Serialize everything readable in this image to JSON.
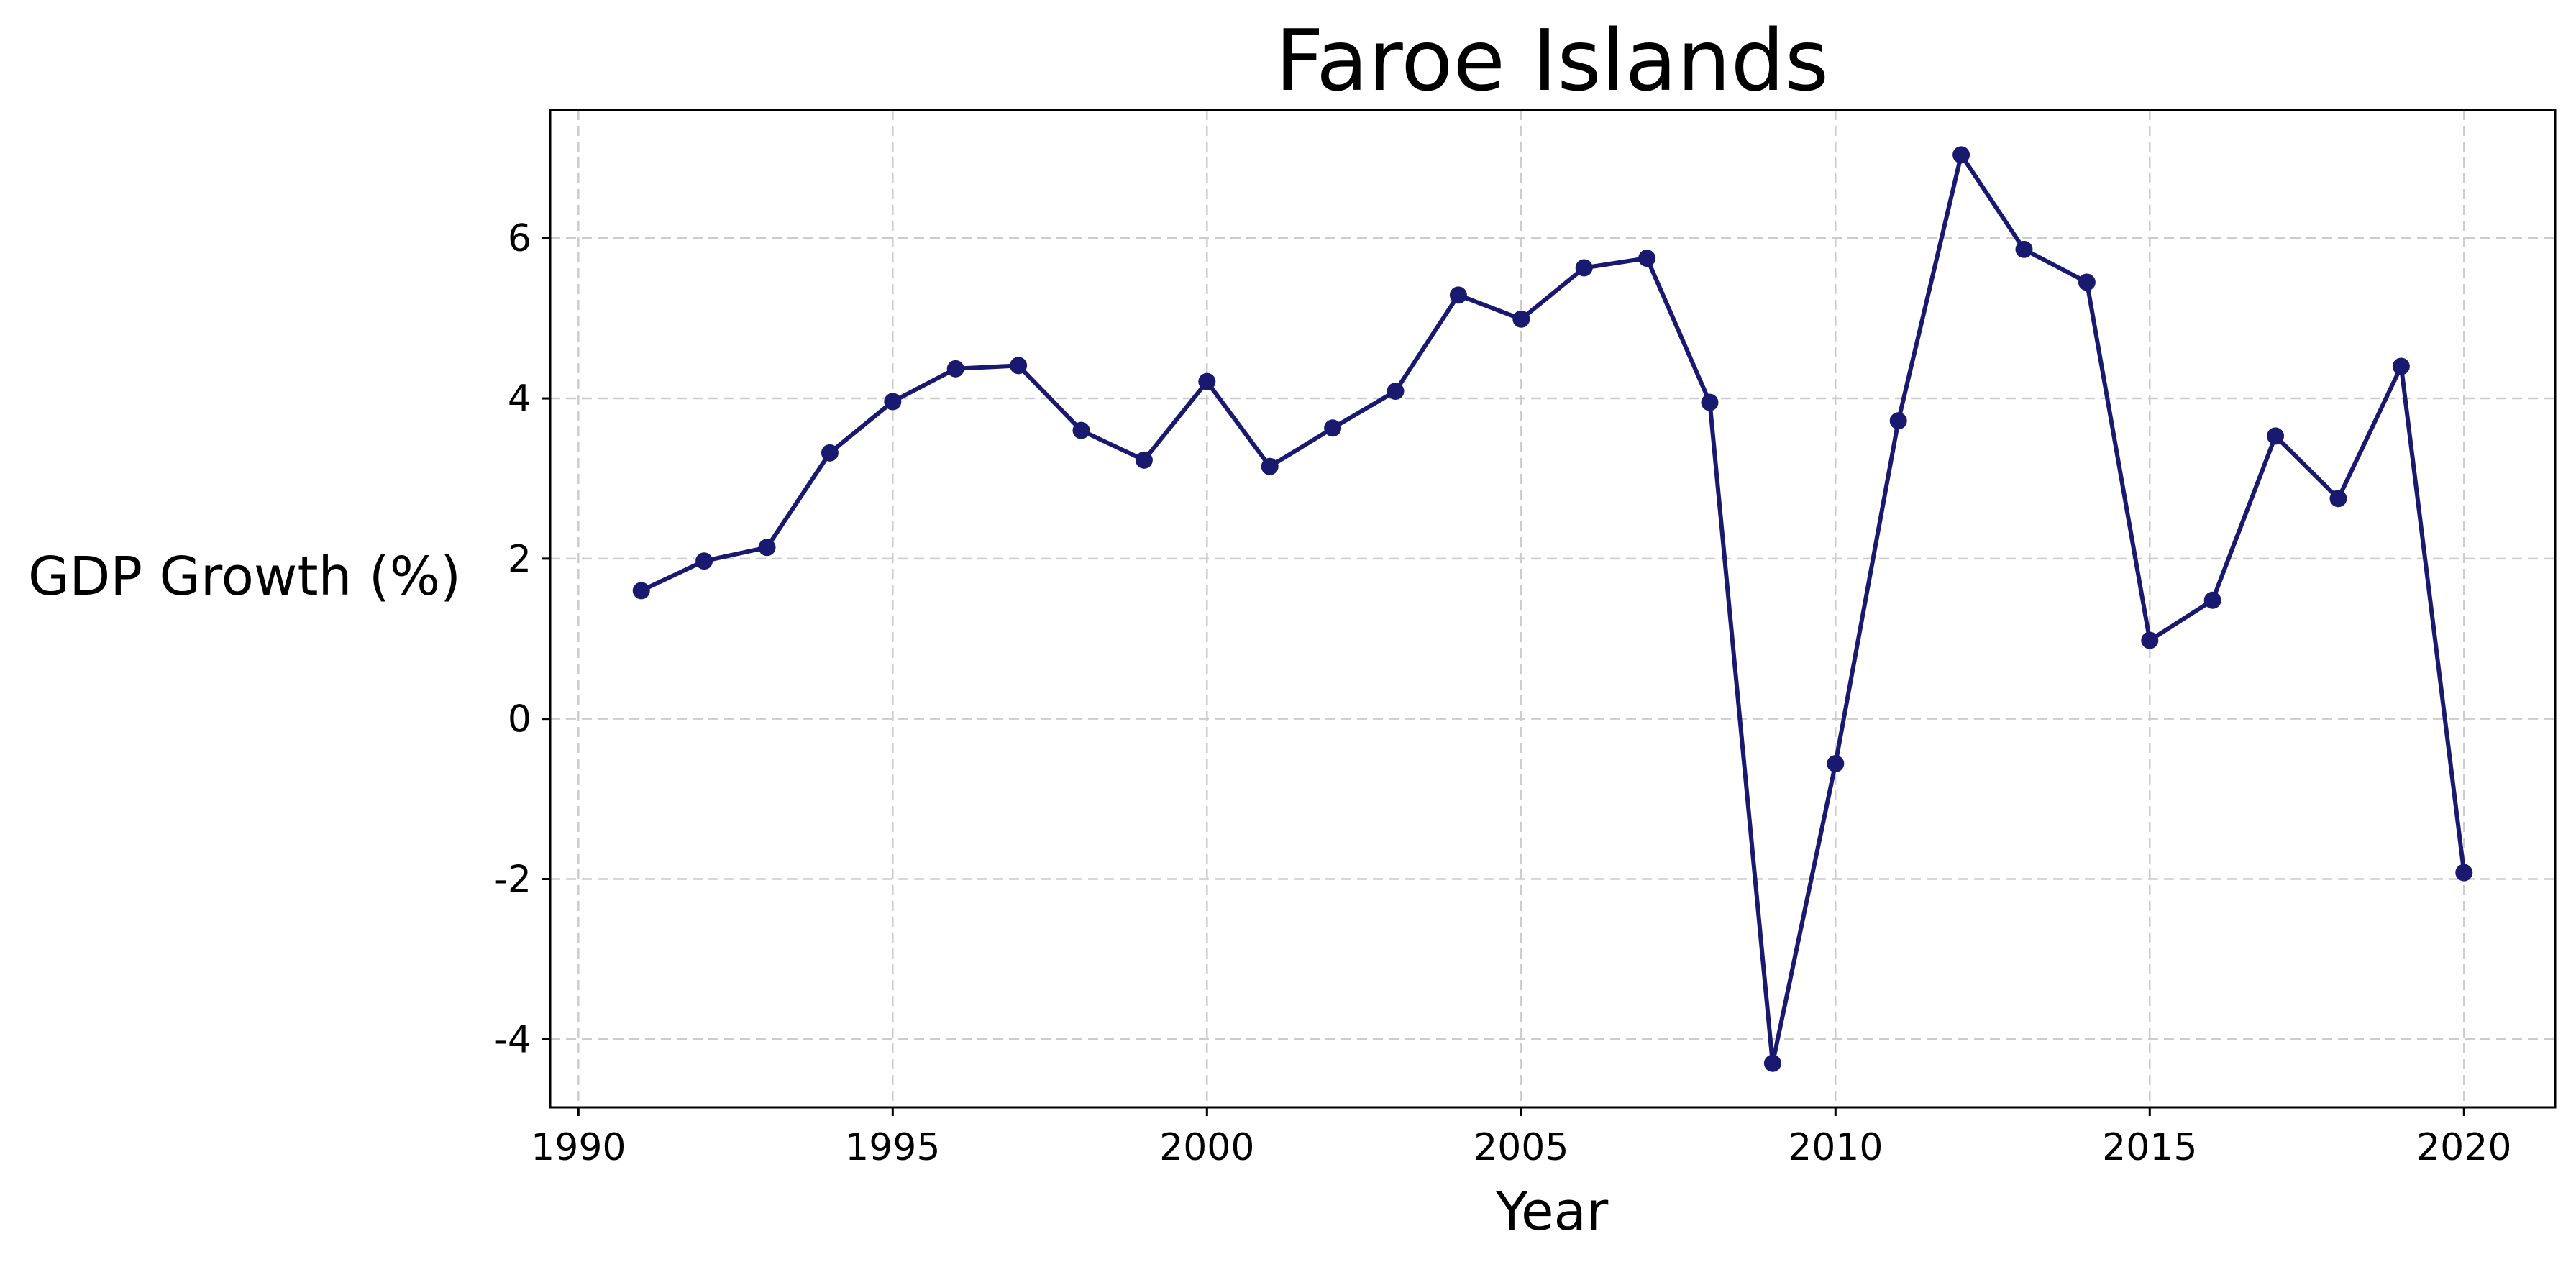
{
  "chart_data": {
    "type": "line",
    "title": "Faroe Islands",
    "xlabel": "Year",
    "ylabel": "GDP Growth (%)",
    "xlim": [
      1989.55,
      2021.45
    ],
    "ylim": [
      -4.85,
      7.6
    ],
    "xticks": [
      1990,
      1995,
      2000,
      2005,
      2010,
      2015,
      2020
    ],
    "yticks": [
      -4,
      -2,
      0,
      2,
      4,
      6
    ],
    "xtick_labels": [
      "1990",
      "1995",
      "2000",
      "2005",
      "2010",
      "2015",
      "2020"
    ],
    "ytick_labels": [
      "-4",
      "-2",
      "0",
      "2",
      "4",
      "6"
    ],
    "grid": true,
    "line_color": "#191970",
    "marker": "circle",
    "x": [
      1991,
      1992,
      1993,
      1994,
      1995,
      1996,
      1997,
      1998,
      1999,
      2000,
      2001,
      2002,
      2003,
      2004,
      2005,
      2006,
      2007,
      2008,
      2009,
      2010,
      2011,
      2012,
      2013,
      2014,
      2015,
      2016,
      2017,
      2018,
      2019,
      2020
    ],
    "y": [
      1.6,
      1.97,
      2.14,
      3.32,
      3.96,
      4.37,
      4.41,
      3.6,
      3.23,
      4.21,
      3.15,
      3.63,
      4.09,
      5.29,
      4.99,
      5.63,
      5.75,
      3.95,
      -4.3,
      -0.56,
      3.72,
      7.04,
      5.86,
      5.45,
      0.98,
      1.48,
      3.53,
      2.75,
      4.4,
      -1.92
    ]
  }
}
